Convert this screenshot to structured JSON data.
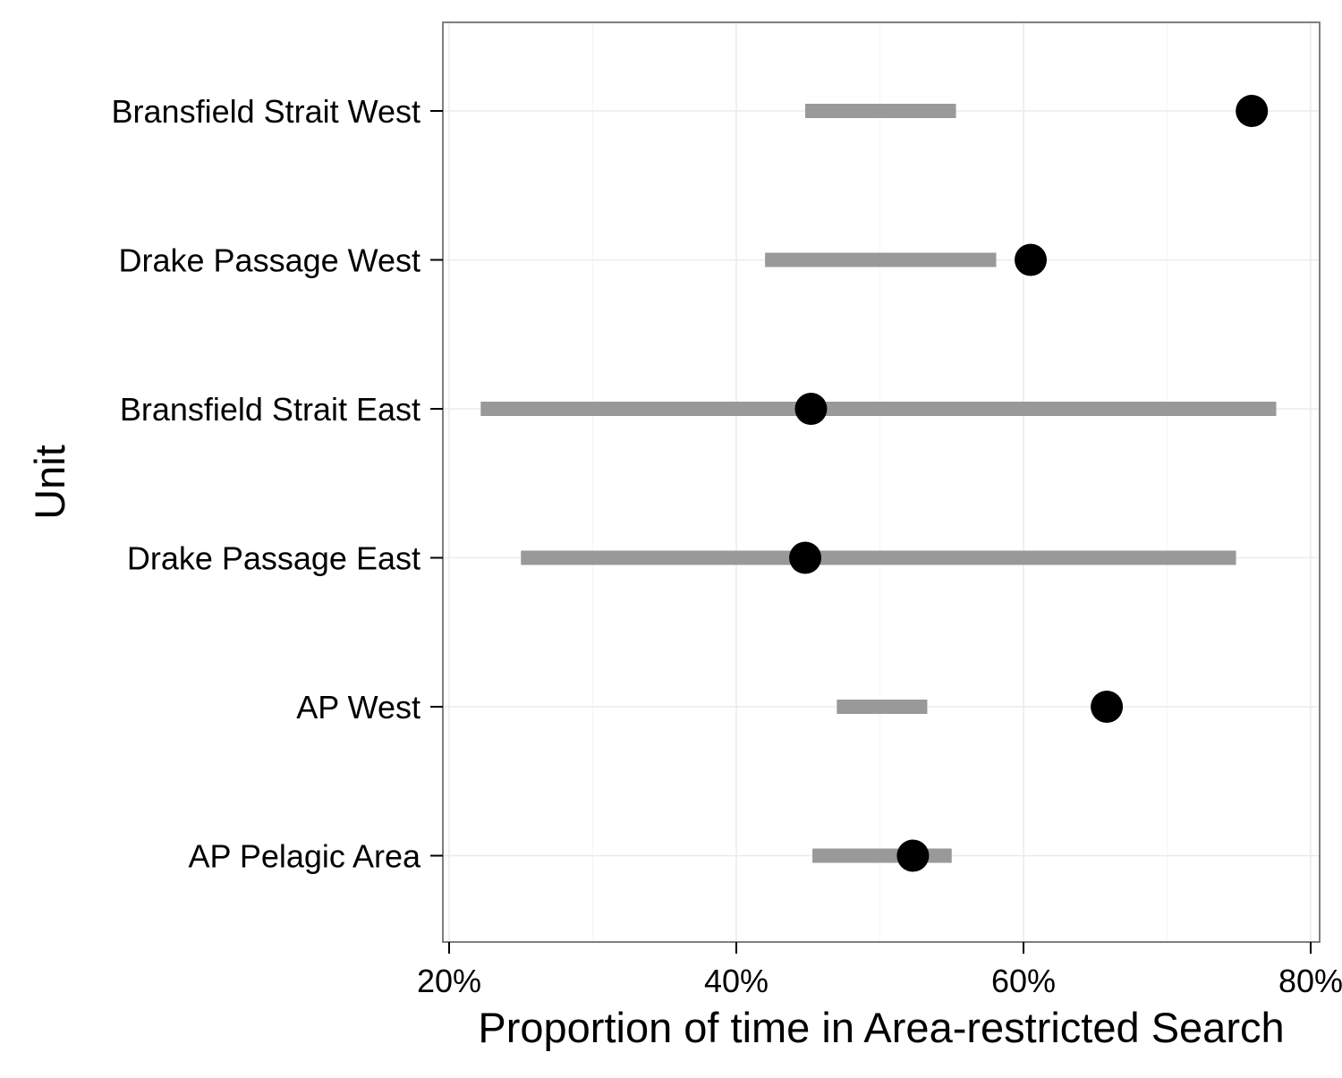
{
  "chart_data": {
    "type": "dot-range",
    "xlabel": "Proportion of time in Area-restricted Search",
    "ylabel": "Unit",
    "xlim": [
      0.195,
      0.8
    ],
    "x_ticks": [
      0.2,
      0.4,
      0.6,
      0.8
    ],
    "x_tick_labels": [
      "20%",
      "40%",
      "60%",
      "80%"
    ],
    "grid": true,
    "categories": [
      "Bransfield Strait West",
      "Drake Passage West",
      "Bransfield Strait East",
      "Drake Passage East",
      "AP West",
      "AP Pelagic Area"
    ],
    "ranges": [
      [
        0.448,
        0.553
      ],
      [
        0.42,
        0.581
      ],
      [
        0.222,
        0.776
      ],
      [
        0.25,
        0.748
      ],
      [
        0.47,
        0.533
      ],
      [
        0.453,
        0.55
      ]
    ],
    "points": [
      0.759,
      0.605,
      0.452,
      0.448,
      0.658,
      0.523
    ],
    "colors": {
      "range": "#999999",
      "point": "#000000",
      "grid": "#ebebeb",
      "panel_border": "#7f7f7f"
    }
  }
}
